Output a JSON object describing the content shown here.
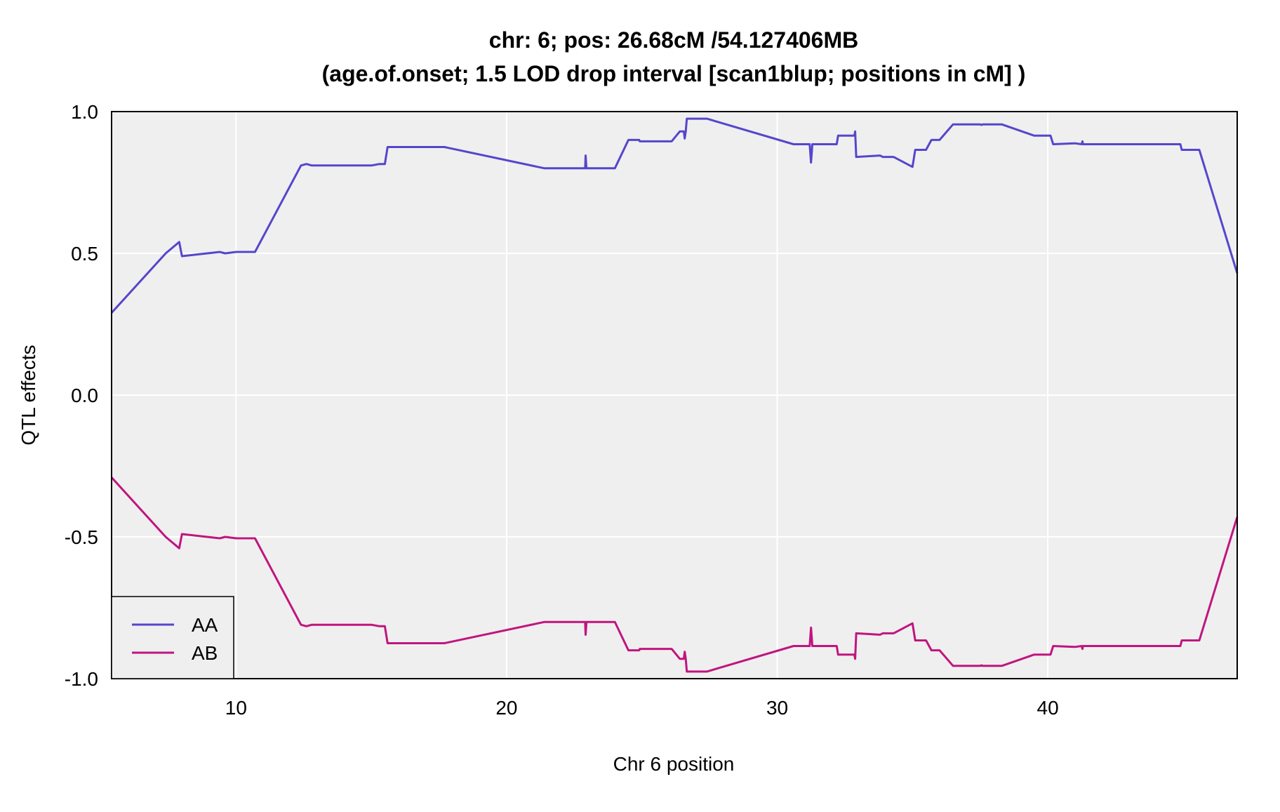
{
  "chart_data": {
    "type": "line",
    "title_line1": "chr: 6; pos: 26.68cM /54.127406MB",
    "title_line2": "(age.of.onset; 1.5 LOD drop interval [scan1blup; positions in cM] )",
    "xlabel": "Chr 6 position",
    "ylabel": "QTL effects",
    "xlim": [
      5.4,
      47.0
    ],
    "ylim": [
      -1.0,
      1.0
    ],
    "x_ticks": [
      10,
      20,
      30,
      40
    ],
    "y_ticks": [
      1.0,
      0.5,
      0.0,
      -0.5,
      -1.0
    ],
    "y_tick_labels": [
      "1.0",
      "0.5",
      "0.0",
      "-0.5",
      "-1.0"
    ],
    "grid": true,
    "legend_position": "bottom-left",
    "background_color": "#efefef",
    "series": [
      {
        "name": "AA",
        "color": "#5546cc",
        "points": [
          [
            5.4,
            0.29
          ],
          [
            7.4,
            0.5
          ],
          [
            7.9,
            0.54
          ],
          [
            8.0,
            0.49
          ],
          [
            9.4,
            0.505
          ],
          [
            9.6,
            0.5
          ],
          [
            10.0,
            0.505
          ],
          [
            10.7,
            0.505
          ],
          [
            12.4,
            0.81
          ],
          [
            12.6,
            0.815
          ],
          [
            12.8,
            0.81
          ],
          [
            15.0,
            0.81
          ],
          [
            15.3,
            0.815
          ],
          [
            15.5,
            0.815
          ],
          [
            15.6,
            0.875
          ],
          [
            17.7,
            0.875
          ],
          [
            21.4,
            0.8
          ],
          [
            22.9,
            0.8
          ],
          [
            22.92,
            0.845
          ],
          [
            22.95,
            0.8
          ],
          [
            24.0,
            0.8
          ],
          [
            24.5,
            0.9
          ],
          [
            24.9,
            0.9
          ],
          [
            24.92,
            0.895
          ],
          [
            26.1,
            0.895
          ],
          [
            26.4,
            0.93
          ],
          [
            26.55,
            0.93
          ],
          [
            26.58,
            0.905
          ],
          [
            26.62,
            0.93
          ],
          [
            26.66,
            0.975
          ],
          [
            27.4,
            0.975
          ],
          [
            30.6,
            0.885
          ],
          [
            31.2,
            0.885
          ],
          [
            31.25,
            0.82
          ],
          [
            31.3,
            0.885
          ],
          [
            32.2,
            0.885
          ],
          [
            32.25,
            0.915
          ],
          [
            32.85,
            0.915
          ],
          [
            32.88,
            0.93
          ],
          [
            32.92,
            0.84
          ],
          [
            33.8,
            0.845
          ],
          [
            33.9,
            0.84
          ],
          [
            34.3,
            0.84
          ],
          [
            35.0,
            0.805
          ],
          [
            35.1,
            0.865
          ],
          [
            35.5,
            0.865
          ],
          [
            35.7,
            0.9
          ],
          [
            36.0,
            0.9
          ],
          [
            36.5,
            0.955
          ],
          [
            37.5,
            0.955
          ],
          [
            37.55,
            0.953
          ],
          [
            37.6,
            0.955
          ],
          [
            38.3,
            0.955
          ],
          [
            39.5,
            0.915
          ],
          [
            40.1,
            0.915
          ],
          [
            40.2,
            0.885
          ],
          [
            41.0,
            0.888
          ],
          [
            41.25,
            0.885
          ],
          [
            41.28,
            0.895
          ],
          [
            41.3,
            0.885
          ],
          [
            43.0,
            0.885
          ],
          [
            44.9,
            0.885
          ],
          [
            44.95,
            0.865
          ],
          [
            45.6,
            0.865
          ],
          [
            47.0,
            0.43
          ]
        ]
      },
      {
        "name": "AB",
        "color": "#c0157f",
        "points": [
          [
            5.4,
            -0.29
          ],
          [
            7.4,
            -0.5
          ],
          [
            7.9,
            -0.54
          ],
          [
            8.0,
            -0.49
          ],
          [
            9.4,
            -0.505
          ],
          [
            9.6,
            -0.5
          ],
          [
            10.0,
            -0.505
          ],
          [
            10.7,
            -0.505
          ],
          [
            12.4,
            -0.81
          ],
          [
            12.6,
            -0.815
          ],
          [
            12.8,
            -0.81
          ],
          [
            15.0,
            -0.81
          ],
          [
            15.3,
            -0.815
          ],
          [
            15.5,
            -0.815
          ],
          [
            15.6,
            -0.875
          ],
          [
            17.7,
            -0.875
          ],
          [
            21.4,
            -0.8
          ],
          [
            22.9,
            -0.8
          ],
          [
            22.92,
            -0.845
          ],
          [
            22.95,
            -0.8
          ],
          [
            24.0,
            -0.8
          ],
          [
            24.5,
            -0.9
          ],
          [
            24.9,
            -0.9
          ],
          [
            24.92,
            -0.895
          ],
          [
            26.1,
            -0.895
          ],
          [
            26.4,
            -0.93
          ],
          [
            26.55,
            -0.93
          ],
          [
            26.58,
            -0.905
          ],
          [
            26.62,
            -0.93
          ],
          [
            26.66,
            -0.975
          ],
          [
            27.4,
            -0.975
          ],
          [
            30.6,
            -0.885
          ],
          [
            31.2,
            -0.885
          ],
          [
            31.25,
            -0.82
          ],
          [
            31.3,
            -0.885
          ],
          [
            32.2,
            -0.885
          ],
          [
            32.25,
            -0.915
          ],
          [
            32.85,
            -0.915
          ],
          [
            32.88,
            -0.93
          ],
          [
            32.92,
            -0.84
          ],
          [
            33.8,
            -0.845
          ],
          [
            33.9,
            -0.84
          ],
          [
            34.3,
            -0.84
          ],
          [
            35.0,
            -0.805
          ],
          [
            35.1,
            -0.865
          ],
          [
            35.5,
            -0.865
          ],
          [
            35.7,
            -0.9
          ],
          [
            36.0,
            -0.9
          ],
          [
            36.5,
            -0.955
          ],
          [
            37.5,
            -0.955
          ],
          [
            37.55,
            -0.953
          ],
          [
            37.6,
            -0.955
          ],
          [
            38.3,
            -0.955
          ],
          [
            39.5,
            -0.915
          ],
          [
            40.1,
            -0.915
          ],
          [
            40.2,
            -0.885
          ],
          [
            41.0,
            -0.888
          ],
          [
            41.25,
            -0.885
          ],
          [
            41.28,
            -0.895
          ],
          [
            41.3,
            -0.885
          ],
          [
            43.0,
            -0.885
          ],
          [
            44.9,
            -0.885
          ],
          [
            44.95,
            -0.865
          ],
          [
            45.6,
            -0.865
          ],
          [
            47.0,
            -0.43
          ]
        ]
      }
    ]
  }
}
